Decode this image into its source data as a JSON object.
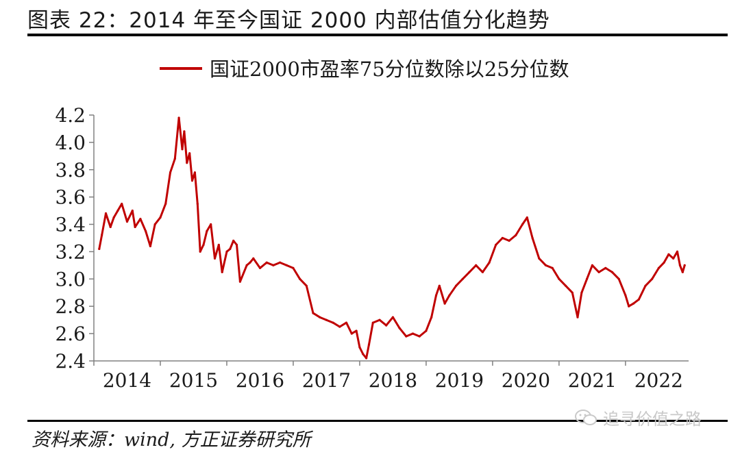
{
  "header": {
    "title": "图表 22：2014 年至今国证 2000 内部估值分化趋势"
  },
  "footer": {
    "source": "资料来源：wind, 方正证券研究所",
    "watermark": "追寻价值之路",
    "watermark_icon": "wechat-icon"
  },
  "colors": {
    "series": "#c00000",
    "axis": "#808080",
    "text": "#1a1a1a"
  },
  "chart_data": {
    "type": "line",
    "title": "",
    "xlabel": "",
    "ylabel": "",
    "legend_position": "top-center",
    "grid": false,
    "xlim": [
      2014,
      2022.95
    ],
    "ylim": [
      2.4,
      4.2
    ],
    "x_ticks": [
      "2014",
      "2015",
      "2016",
      "2017",
      "2018",
      "2019",
      "2020",
      "2021",
      "2022"
    ],
    "y_ticks": [
      "2.4",
      "2.6",
      "2.8",
      "3.0",
      "3.2",
      "3.4",
      "3.6",
      "3.8",
      "4.0",
      "4.2"
    ],
    "series": [
      {
        "name": "国证2000市盈率75分位数除以25分位数",
        "x": [
          2014.08,
          2014.12,
          2014.18,
          2014.25,
          2014.3,
          2014.36,
          2014.42,
          2014.5,
          2014.58,
          2014.62,
          2014.7,
          2014.78,
          2014.85,
          2014.92,
          2015.0,
          2015.08,
          2015.15,
          2015.22,
          2015.28,
          2015.33,
          2015.36,
          2015.4,
          2015.44,
          2015.48,
          2015.52,
          2015.56,
          2015.6,
          2015.65,
          2015.7,
          2015.76,
          2015.82,
          2015.88,
          2015.93,
          2016.0,
          2016.05,
          2016.1,
          2016.15,
          2016.2,
          2016.3,
          2016.35,
          2016.4,
          2016.5,
          2016.6,
          2016.7,
          2016.8,
          2016.9,
          2017.0,
          2017.1,
          2017.2,
          2017.3,
          2017.4,
          2017.5,
          2017.6,
          2017.7,
          2017.8,
          2017.88,
          2017.95,
          2018.0,
          2018.05,
          2018.1,
          2018.14,
          2018.2,
          2018.3,
          2018.4,
          2018.5,
          2018.6,
          2018.7,
          2018.8,
          2018.9,
          2019.0,
          2019.08,
          2019.15,
          2019.2,
          2019.28,
          2019.35,
          2019.45,
          2019.55,
          2019.65,
          2019.75,
          2019.85,
          2019.95,
          2020.05,
          2020.15,
          2020.25,
          2020.35,
          2020.45,
          2020.52,
          2020.6,
          2020.7,
          2020.8,
          2020.9,
          2021.0,
          2021.1,
          2021.2,
          2021.28,
          2021.34,
          2021.42,
          2021.5,
          2021.6,
          2021.7,
          2021.8,
          2021.9,
          2022.0,
          2022.05,
          2022.12,
          2022.2,
          2022.3,
          2022.4,
          2022.5,
          2022.58,
          2022.65,
          2022.72,
          2022.78,
          2022.82,
          2022.86,
          2022.89
        ],
        "values": [
          3.22,
          3.32,
          3.48,
          3.38,
          3.45,
          3.5,
          3.55,
          3.42,
          3.5,
          3.38,
          3.44,
          3.35,
          3.24,
          3.4,
          3.45,
          3.55,
          3.78,
          3.88,
          4.18,
          3.95,
          4.08,
          3.85,
          3.92,
          3.72,
          3.78,
          3.55,
          3.2,
          3.25,
          3.35,
          3.4,
          3.15,
          3.25,
          3.05,
          3.2,
          3.22,
          3.28,
          3.25,
          2.98,
          3.1,
          3.12,
          3.15,
          3.08,
          3.12,
          3.1,
          3.12,
          3.1,
          3.08,
          3.0,
          2.95,
          2.75,
          2.72,
          2.7,
          2.68,
          2.65,
          2.68,
          2.6,
          2.62,
          2.5,
          2.45,
          2.42,
          2.52,
          2.68,
          2.7,
          2.66,
          2.72,
          2.64,
          2.58,
          2.6,
          2.58,
          2.62,
          2.72,
          2.88,
          2.95,
          2.82,
          2.88,
          2.95,
          3.0,
          3.05,
          3.1,
          3.05,
          3.12,
          3.25,
          3.3,
          3.28,
          3.32,
          3.4,
          3.45,
          3.3,
          3.15,
          3.1,
          3.08,
          3.0,
          2.95,
          2.9,
          2.72,
          2.9,
          3.0,
          3.1,
          3.05,
          3.08,
          3.05,
          3.0,
          2.88,
          2.8,
          2.82,
          2.85,
          2.95,
          3.0,
          3.08,
          3.12,
          3.18,
          3.15,
          3.2,
          3.1,
          3.05,
          3.1
        ]
      }
    ]
  }
}
